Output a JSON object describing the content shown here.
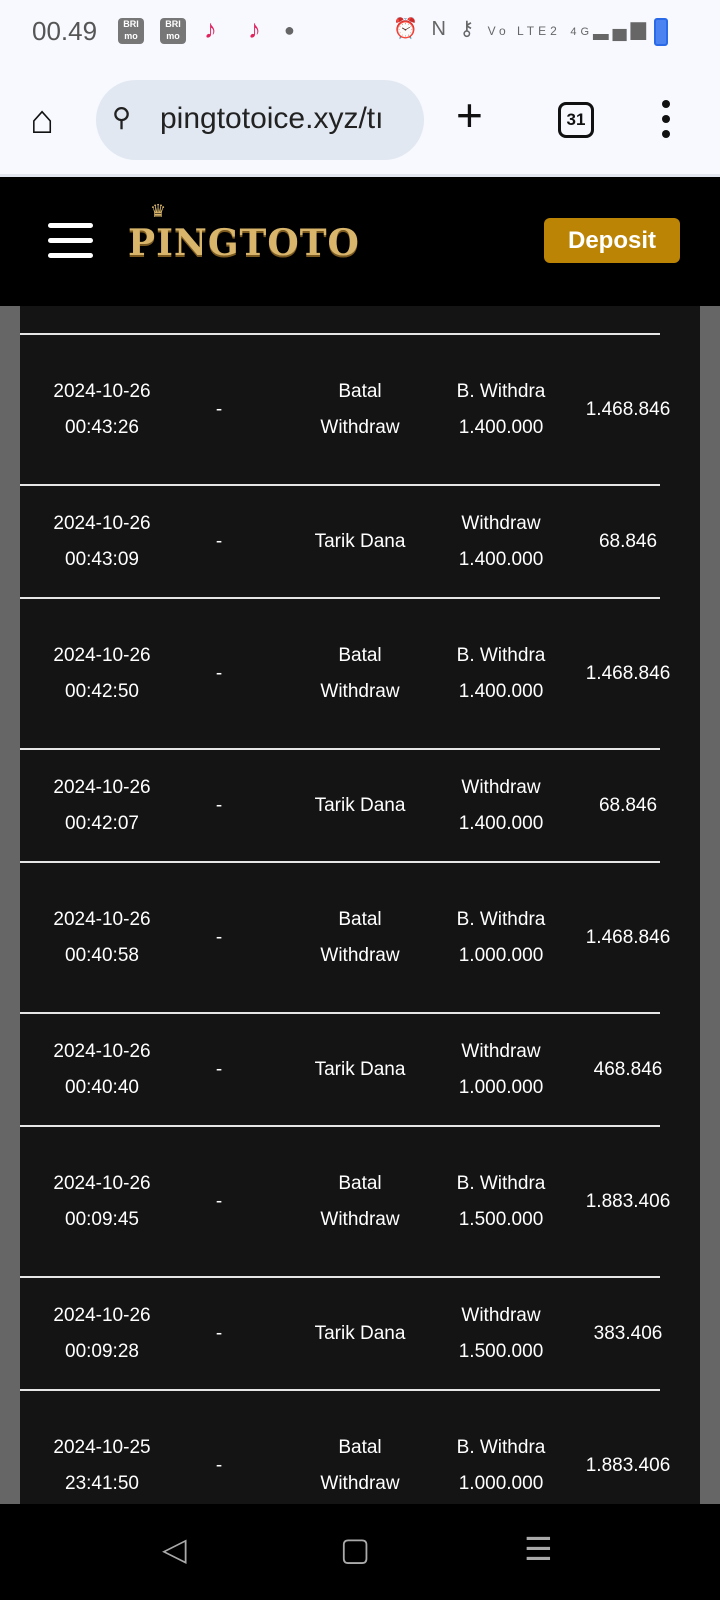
{
  "status_bar": {
    "time": "00.49",
    "notification_icons": [
      "brimo-icon",
      "brimo-icon",
      "tiktok-icon",
      "tiktok-icon"
    ],
    "bri_label": "BRI",
    "mo_label": "mo",
    "system_icons": [
      "alarm-icon",
      "nfc-icon",
      "vpn-key-icon",
      "volte-icon",
      "signal-icon",
      "battery-charging-icon"
    ],
    "volte": "Vo LTE2",
    "network": "4G"
  },
  "browser": {
    "url": "pingtotoice.xyz/tı",
    "tab_count": "31"
  },
  "header": {
    "logo_text": "PINGTOTO",
    "deposit_label": "Deposit",
    "accent": "#bb8404"
  },
  "transactions": [
    {
      "date": "2024-10-26",
      "time": "00:43:26",
      "ref": "-",
      "type": "Batal Withdraw",
      "amount_label": "B. Withdra",
      "amount": "1.400.000",
      "balance": "1.468.846"
    },
    {
      "date": "2024-10-26",
      "time": "00:43:09",
      "ref": "-",
      "type": "Tarik Dana",
      "amount_label": "Withdraw",
      "amount": "1.400.000",
      "balance": "68.846"
    },
    {
      "date": "2024-10-26",
      "time": "00:42:50",
      "ref": "-",
      "type": "Batal Withdraw",
      "amount_label": "B. Withdra",
      "amount": "1.400.000",
      "balance": "1.468.846"
    },
    {
      "date": "2024-10-26",
      "time": "00:42:07",
      "ref": "-",
      "type": "Tarik Dana",
      "amount_label": "Withdraw",
      "amount": "1.400.000",
      "balance": "68.846"
    },
    {
      "date": "2024-10-26",
      "time": "00:40:58",
      "ref": "-",
      "type": "Batal Withdraw",
      "amount_label": "B. Withdra",
      "amount": "1.000.000",
      "balance": "1.468.846"
    },
    {
      "date": "2024-10-26",
      "time": "00:40:40",
      "ref": "-",
      "type": "Tarik Dana",
      "amount_label": "Withdraw",
      "amount": "1.000.000",
      "balance": "468.846"
    },
    {
      "date": "2024-10-26",
      "time": "00:09:45",
      "ref": "-",
      "type": "Batal Withdraw",
      "amount_label": "B. Withdra",
      "amount": "1.500.000",
      "balance": "1.883.406"
    },
    {
      "date": "2024-10-26",
      "time": "00:09:28",
      "ref": "-",
      "type": "Tarik Dana",
      "amount_label": "Withdraw",
      "amount": "1.500.000",
      "balance": "383.406"
    },
    {
      "date": "2024-10-25",
      "time": "23:41:50",
      "ref": "-",
      "type": "Batal Withdraw",
      "amount_label": "B. Withdra",
      "amount": "1.000.000",
      "balance": "1.883.406"
    }
  ],
  "nav_bar": {
    "icons": [
      "back-icon",
      "home-icon",
      "recents-icon"
    ]
  }
}
